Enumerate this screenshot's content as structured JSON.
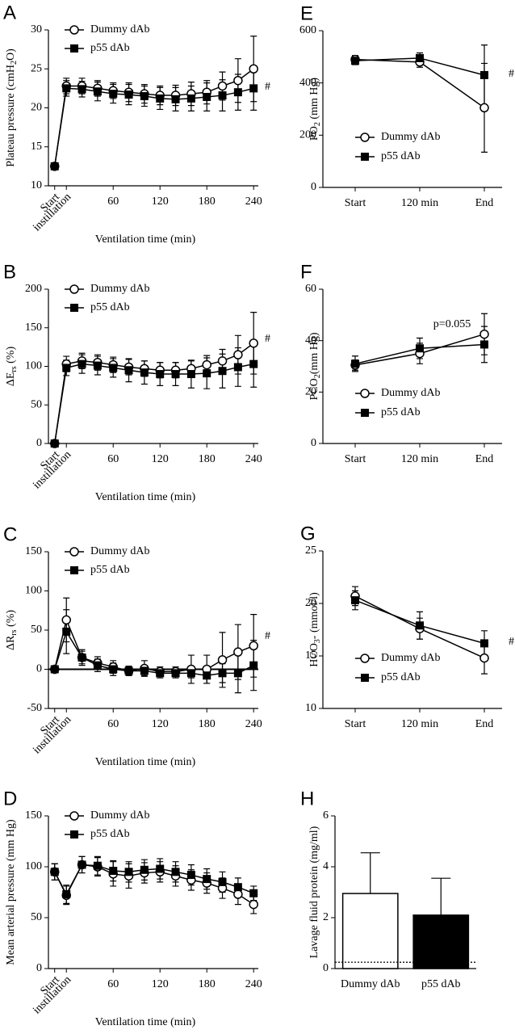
{
  "chart_data": [
    {
      "type": "line",
      "panel_label": "A",
      "ylabel": [
        "Plateau pressure (cmH",
        "2",
        "O)"
      ],
      "xlabel": "Ventilation time (min)",
      "x": [
        -15,
        0,
        20,
        40,
        60,
        80,
        100,
        120,
        140,
        160,
        180,
        200,
        220,
        240
      ],
      "xlim": [
        -23,
        246
      ],
      "xticks": [
        {
          "value": -15,
          "label": "Start"
        },
        {
          "value": 0,
          "label": "instillation"
        },
        60,
        120,
        180,
        240
      ],
      "ylim": [
        10,
        30
      ],
      "yticks": [
        10,
        15,
        20,
        25,
        30
      ],
      "significance": "#",
      "series": [
        {
          "name": "Dummy dAb",
          "color": "#000000",
          "fill": "#ffffff",
          "values": [
            12.5,
            22.8,
            22.8,
            22.5,
            22.2,
            22,
            21.8,
            21.6,
            21.6,
            21.8,
            22,
            22.8,
            23.5,
            25
          ],
          "errors": [
            0,
            1,
            1,
            1,
            1,
            1.2,
            1.2,
            1.2,
            1.3,
            1.5,
            1.5,
            1.8,
            2.8,
            4.2
          ]
        },
        {
          "name": "p55 dAb",
          "color": "#000000",
          "fill": "#000000",
          "values": [
            12.5,
            22.5,
            22.4,
            22.1,
            21.8,
            21.7,
            21.5,
            21.2,
            21.1,
            21.2,
            21.4,
            21.6,
            22,
            22.5
          ],
          "errors": [
            0,
            1,
            1,
            1.2,
            1.2,
            1.3,
            1.3,
            1.4,
            1.5,
            1.6,
            1.8,
            2,
            2.3,
            2.8
          ]
        }
      ]
    },
    {
      "type": "line",
      "panel_label": "B",
      "ylabel": [
        "ΔE",
        "rs",
        " (%)"
      ],
      "xlabel": "Ventilation time (min)",
      "x": [
        -15,
        0,
        20,
        40,
        60,
        80,
        100,
        120,
        140,
        160,
        180,
        200,
        220,
        240
      ],
      "xlim": [
        -23,
        246
      ],
      "xticks": [
        {
          "value": -15,
          "label": "Start"
        },
        {
          "value": 0,
          "label": "instillation"
        },
        60,
        120,
        180,
        240
      ],
      "ylim": [
        0,
        200
      ],
      "yticks": [
        0,
        50,
        100,
        150,
        200
      ],
      "significance": "#",
      "series": [
        {
          "name": "Dummy dAb",
          "color": "#000000",
          "fill": "#ffffff",
          "values": [
            0,
            103,
            107,
            105,
            102,
            99,
            97,
            95,
            95,
            97,
            102,
            107,
            115,
            130
          ],
          "errors": [
            0,
            10,
            10,
            10,
            10,
            10,
            10,
            10,
            10,
            10,
            12,
            15,
            25,
            40
          ]
        },
        {
          "name": "p55 dAb",
          "color": "#000000",
          "fill": "#000000",
          "values": [
            0,
            98,
            103,
            101,
            98,
            95,
            92,
            90,
            90,
            90,
            91,
            94,
            99,
            103
          ],
          "errors": [
            0,
            10,
            12,
            12,
            12,
            15,
            15,
            15,
            15,
            18,
            20,
            22,
            25,
            30
          ]
        }
      ]
    },
    {
      "type": "line",
      "panel_label": "C",
      "ylabel": [
        "ΔR",
        "rs",
        " (%)"
      ],
      "xlabel": "Ventilation time (min)",
      "x": [
        -15,
        0,
        20,
        40,
        60,
        80,
        100,
        120,
        140,
        160,
        180,
        200,
        220,
        240
      ],
      "xlim": [
        -23,
        246
      ],
      "xticks": [
        {
          "value": -15,
          "label": "Start"
        },
        {
          "value": 0,
          "label": "instillation"
        },
        60,
        120,
        180,
        240
      ],
      "ylim": [
        -50,
        150
      ],
      "yticks": [
        -50,
        0,
        50,
        100,
        150
      ],
      "reference_line": 0,
      "significance": "#",
      "series": [
        {
          "name": "Dummy dAb",
          "color": "#000000",
          "fill": "#ffffff",
          "values": [
            0,
            63,
            15,
            8,
            3,
            -2,
            1,
            -3,
            -3,
            0,
            0,
            12,
            22,
            30
          ],
          "errors": [
            0,
            28,
            10,
            8,
            8,
            6,
            10,
            6,
            6,
            18,
            18,
            35,
            35,
            40
          ]
        },
        {
          "name": "p55 dAb",
          "color": "#000000",
          "fill": "#000000",
          "values": [
            0,
            48,
            15,
            5,
            0,
            -2,
            -2,
            -5,
            -5,
            -5,
            -8,
            -5,
            -5,
            5
          ],
          "errors": [
            0,
            28,
            8,
            8,
            8,
            6,
            6,
            6,
            6,
            6,
            10,
            12,
            25,
            32
          ]
        }
      ]
    },
    {
      "type": "line",
      "panel_label": "D",
      "ylabel": [
        "Mean arterial pressure (mm Hg)"
      ],
      "xlabel": "Ventilation time (min)",
      "x": [
        -15,
        0,
        20,
        40,
        60,
        80,
        100,
        120,
        140,
        160,
        180,
        200,
        220,
        240
      ],
      "xlim": [
        -23,
        246
      ],
      "xticks": [
        {
          "value": -15,
          "label": "Start"
        },
        {
          "value": 0,
          "label": "instillation"
        },
        60,
        120,
        180,
        240
      ],
      "ylim": [
        0,
        150
      ],
      "yticks": [
        0,
        50,
        100,
        150
      ],
      "series": [
        {
          "name": "Dummy dAb",
          "color": "#000000",
          "fill": "#ffffff",
          "values": [
            95,
            72,
            102,
            100,
            93,
            91,
            94,
            95,
            91,
            87,
            84,
            79,
            73,
            63
          ],
          "errors": [
            8,
            9,
            8,
            9,
            12,
            12,
            10,
            10,
            10,
            10,
            10,
            10,
            10,
            9
          ]
        },
        {
          "name": "p55 dAb",
          "color": "#000000",
          "fill": "#000000",
          "values": [
            95,
            73,
            102,
            101,
            96,
            95,
            97,
            98,
            95,
            92,
            88,
            85,
            80,
            74
          ],
          "errors": [
            8,
            9,
            8,
            9,
            10,
            10,
            10,
            10,
            10,
            10,
            10,
            10,
            9,
            7
          ]
        }
      ]
    },
    {
      "type": "line",
      "panel_label": "E",
      "ylabel": [
        "PO",
        "2",
        " (mm Hg)"
      ],
      "categories": [
        "Start",
        "120 min",
        "End"
      ],
      "ylim": [
        0,
        600
      ],
      "yticks": [
        0,
        200,
        400,
        600
      ],
      "significance": "#",
      "series": [
        {
          "name": "Dummy dAb",
          "color": "#000000",
          "fill": "#ffffff",
          "values": [
            490,
            480,
            305
          ],
          "errors": [
            15,
            20,
            170
          ]
        },
        {
          "name": "p55 dAb",
          "color": "#000000",
          "fill": "#000000",
          "values": [
            485,
            495,
            430
          ],
          "errors": [
            15,
            20,
            115
          ]
        }
      ]
    },
    {
      "type": "line",
      "panel_label": "F",
      "ylabel": [
        "PCO",
        "2",
        "(mm Hg)"
      ],
      "categories": [
        "Start",
        "120 min",
        "End"
      ],
      "ylim": [
        0,
        60
      ],
      "yticks": [
        0,
        20,
        40,
        60
      ],
      "annotation": "p=0.055",
      "series": [
        {
          "name": "Dummy dAb",
          "color": "#000000",
          "fill": "#ffffff",
          "values": [
            30.5,
            35,
            42.5
          ],
          "errors": [
            2,
            4,
            8
          ]
        },
        {
          "name": "p55 dAb",
          "color": "#000000",
          "fill": "#000000",
          "values": [
            31,
            37,
            38.5
          ],
          "errors": [
            3,
            4,
            7
          ]
        }
      ]
    },
    {
      "type": "line",
      "panel_label": "G",
      "ylabel": [
        "HCO",
        "3",
        "- (mmol/l)"
      ],
      "categories": [
        "Start",
        "120 min",
        "End"
      ],
      "ylim": [
        10,
        25
      ],
      "yticks": [
        10,
        15,
        20,
        25
      ],
      "significance": "#",
      "series": [
        {
          "name": "Dummy dAb",
          "color": "#000000",
          "fill": "#ffffff",
          "values": [
            20.7,
            17.6,
            14.8
          ],
          "errors": [
            0.9,
            1,
            1.5
          ]
        },
        {
          "name": "p55 dAb",
          "color": "#000000",
          "fill": "#000000",
          "values": [
            20.3,
            17.9,
            16.2
          ],
          "errors": [
            0.9,
            1.3,
            1.2
          ]
        }
      ]
    },
    {
      "type": "bar",
      "panel_label": "H",
      "ylabel": [
        "Lavage fluid protein (mg/ml)"
      ],
      "categories": [
        "Dummy dAb",
        "p55 dAb"
      ],
      "values": [
        2.95,
        2.1
      ],
      "errors": [
        1.6,
        1.45
      ],
      "colors": [
        "#ffffff",
        "#000000"
      ],
      "ylim": [
        0,
        6
      ],
      "yticks": [
        0,
        2,
        4,
        6
      ],
      "reference_line": 0.25
    }
  ]
}
